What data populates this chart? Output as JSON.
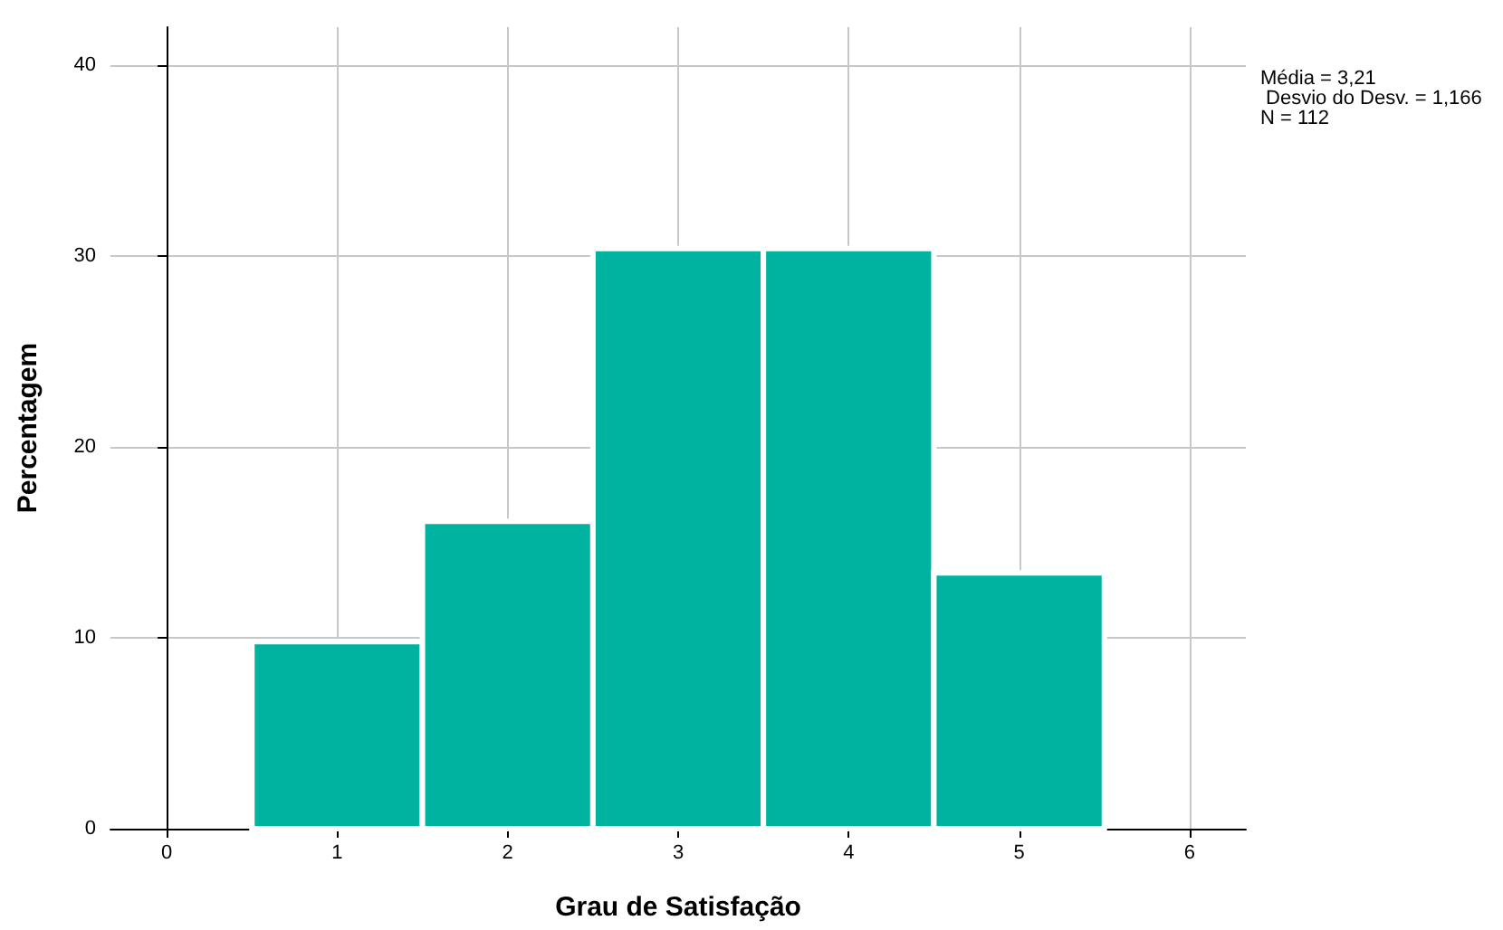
{
  "chart_data": {
    "type": "histogram",
    "xlabel": "Grau de Satisfação",
    "ylabel": "Percentagem",
    "bins": [
      0.5,
      1.5,
      2.5,
      3.5,
      4.5,
      5.5
    ],
    "values": [
      9.8,
      16.1,
      30.4,
      30.4,
      13.4
    ],
    "color": "#00b2a0",
    "xlim": [
      -0.33,
      6.33
    ],
    "xticks": [
      0,
      1,
      2,
      3,
      4,
      5,
      6
    ],
    "ylim": [
      0,
      42
    ],
    "yticks": [
      0,
      10,
      20,
      30,
      40
    ],
    "grid": true,
    "annotations": [
      "Média = 3,21",
      " Desvio do Desv. = 1,166",
      "N = 112"
    ]
  }
}
